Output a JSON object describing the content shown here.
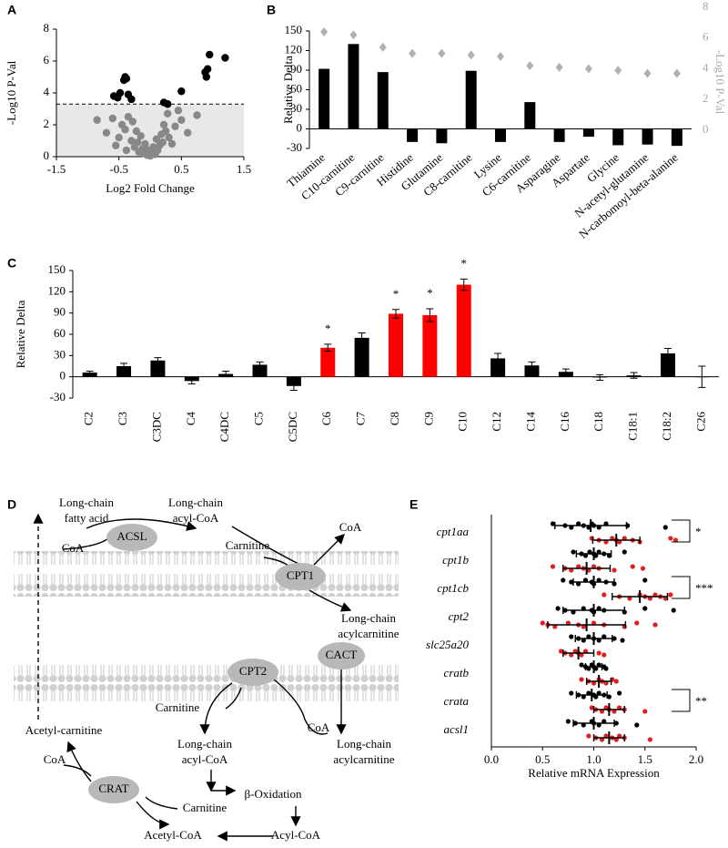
{
  "panel_labels": [
    "A",
    "B",
    "C",
    "D",
    "E"
  ],
  "chart_data": [
    {
      "type": "scatter",
      "xlabel": "Log2 Fold Change",
      "ylabel": "-Log10 P-Val",
      "xlim": [
        -1.5,
        1.5
      ],
      "xticks": [
        -1.5,
        -0.5,
        0.5,
        1.5
      ],
      "ylim": [
        0,
        8
      ],
      "yticks": [
        0,
        2,
        4,
        6,
        8
      ],
      "threshold": 3.3,
      "series": [
        {
          "color": "#000000",
          "x": [
            -0.52,
            -0.48,
            -0.42,
            -0.4,
            -0.38,
            -0.35,
            -0.3,
            -0.58,
            0.22,
            0.28,
            0.5,
            0.88,
            0.9,
            0.95,
            1.2,
            0.92
          ],
          "y": [
            3.7,
            4.0,
            4.8,
            5.0,
            4.9,
            3.9,
            3.6,
            3.8,
            3.4,
            3.3,
            4.1,
            5.3,
            5.0,
            6.4,
            6.2,
            5.5
          ]
        },
        {
          "color": "#888888",
          "x": [
            -0.85,
            -0.7,
            -0.6,
            -0.55,
            -0.5,
            -0.45,
            -0.4,
            -0.38,
            -0.35,
            -0.3,
            -0.28,
            -0.25,
            -0.22,
            -0.2,
            -0.18,
            -0.15,
            -0.12,
            -0.1,
            -0.08,
            -0.05,
            -0.03,
            0,
            0.02,
            0.05,
            0.08,
            0.1,
            0.12,
            0.15,
            0.18,
            0.2,
            0.22,
            0.25,
            0.28,
            0.3,
            0.35,
            0.4,
            0.5,
            0.6,
            0.75,
            0.45
          ],
          "y": [
            2.3,
            1.5,
            2.4,
            0.7,
            1.2,
            2.0,
            1.7,
            0.4,
            2.5,
            1.0,
            2.2,
            0.6,
            1.6,
            0.9,
            0.3,
            1.3,
            0.5,
            0.2,
            0.8,
            0.1,
            0.4,
            0.05,
            0.3,
            0.6,
            0.15,
            1.1,
            0.4,
            0.7,
            1.4,
            0.9,
            2.0,
            1.6,
            2.7,
            1.2,
            0.8,
            1.9,
            2.3,
            1.5,
            2.6,
            2.9
          ]
        }
      ]
    },
    {
      "type": "bar",
      "ylabel": "Relative Delta",
      "y2label": "-Log10 P-Val",
      "categories": [
        "Thiamine",
        "C10-carnitine",
        "C9-carnitine",
        "Histidine",
        "Glutamine",
        "C8-carnitine",
        "Lysine",
        "C6-carnitine",
        "Asparagine",
        "Aspartate",
        "Glycine",
        "N-acetyl-glutamine",
        "N-carbomoyl-beta-alanine"
      ],
      "ylim": [
        -30,
        150
      ],
      "yticks": [
        -30,
        0,
        30,
        60,
        90,
        120,
        150
      ],
      "y2lim": [
        0,
        8
      ],
      "y2ticks": [
        0,
        2,
        4,
        6,
        8
      ],
      "series": [
        {
          "type": "bar",
          "color": "#000000",
          "values": [
            92,
            130,
            87,
            -20,
            -22,
            89,
            -20,
            41,
            -20,
            -12,
            -25,
            -24,
            -26
          ]
        },
        {
          "type": "scatter",
          "axis": "y2",
          "color": "#b0b0b0",
          "values": [
            6.4,
            6.2,
            5.4,
            5.0,
            5.0,
            4.9,
            4.8,
            4.2,
            4.1,
            4.0,
            3.9,
            3.7,
            3.7
          ]
        }
      ]
    },
    {
      "type": "bar",
      "ylabel": "Relative Delta",
      "categories": [
        "C2",
        "C3",
        "C3DC",
        "C4",
        "C4DC",
        "C5",
        "C5DC",
        "C6",
        "C7",
        "C8",
        "C9",
        "C10",
        "C12",
        "C14",
        "C16",
        "C18",
        "C18:1",
        "C18:2",
        "C26"
      ],
      "values": [
        6,
        15,
        23,
        -6,
        4,
        17,
        -13,
        41,
        55,
        89,
        87,
        130,
        26,
        16,
        7,
        -1,
        2,
        33,
        0
      ],
      "errors": [
        2,
        4,
        4,
        4,
        4,
        4,
        6,
        5,
        7,
        6,
        9,
        8,
        7,
        5,
        4,
        4,
        4,
        7,
        15
      ],
      "colors": [
        "#000000",
        "#000000",
        "#000000",
        "#000000",
        "#000000",
        "#000000",
        "#000000",
        "#ff0000",
        "#000000",
        "#ff0000",
        "#ff0000",
        "#ff0000",
        "#000000",
        "#000000",
        "#000000",
        "#000000",
        "#000000",
        "#000000",
        "#000000"
      ],
      "annotations": [
        null,
        null,
        null,
        null,
        null,
        null,
        null,
        "*",
        null,
        "*",
        "*",
        "*",
        null,
        null,
        null,
        null,
        null,
        null,
        null
      ],
      "ylim": [
        -30,
        150
      ],
      "yticks": [
        -30,
        0,
        30,
        60,
        90,
        120,
        150
      ]
    },
    {
      "type": "dotplot",
      "xlabel": "Relative mRNA Expression",
      "categories": [
        "cpt1aa",
        "cpt1b",
        "cpt1cb",
        "cpt2",
        "slc25a20",
        "cratb",
        "crata",
        "acsl1"
      ],
      "xlim": [
        0,
        2
      ],
      "xticks": [
        {
          "value": 0,
          "label": "0.0"
        },
        0.5,
        {
          "value": 1,
          "label": "1.0"
        },
        1.5,
        {
          "value": 2,
          "label": "2.0"
        }
      ],
      "significance": [
        "*",
        null,
        "***",
        null,
        null,
        null,
        "**",
        null
      ],
      "series": [
        {
          "color": "#000000",
          "values": [
            [
              0.6,
              0.72,
              0.78,
              0.85,
              0.9,
              0.95,
              0.98,
              1.0,
              1.05,
              1.12,
              1.33,
              1.7
            ],
            [
              0.8,
              0.88,
              0.92,
              0.96,
              1.0,
              1.02,
              1.05,
              1.1,
              1.15,
              1.3
            ],
            [
              0.7,
              0.78,
              0.85,
              0.92,
              0.98,
              1.0,
              1.05,
              1.12,
              1.2,
              1.5
            ],
            [
              0.65,
              0.72,
              0.8,
              0.9,
              0.98,
              1.0,
              1.05,
              1.1,
              1.3,
              1.5,
              1.78
            ],
            [
              0.78,
              0.85,
              0.9,
              0.95,
              1.0,
              1.05,
              1.1,
              1.2,
              1.28
            ],
            [
              0.88,
              0.92,
              0.95,
              0.98,
              1.0,
              1.02,
              1.05,
              1.1,
              1.12
            ],
            [
              0.78,
              0.85,
              0.9,
              0.95,
              1.0,
              1.02,
              1.05,
              1.1,
              1.15,
              1.25
            ],
            [
              0.75,
              0.82,
              0.9,
              0.98,
              1.0,
              1.05,
              1.1,
              1.22,
              1.42
            ]
          ],
          "means": [
            0.97,
            1.0,
            1.0,
            1.0,
            1.0,
            1.0,
            0.98,
            1.0
          ],
          "sds": [
            0.35,
            0.17,
            0.2,
            0.3,
            0.18,
            0.08,
            0.15,
            0.2
          ]
        },
        {
          "color": "#e02020",
          "values": [
            [
              0.98,
              1.05,
              1.12,
              1.18,
              1.22,
              1.25,
              1.3,
              1.38,
              1.45,
              1.75,
              1.8
            ],
            [
              0.6,
              0.72,
              0.78,
              0.85,
              0.9,
              0.95,
              1.0,
              1.05,
              1.2,
              1.38,
              1.48
            ],
            [
              1.1,
              1.25,
              1.35,
              1.45,
              1.5,
              1.55,
              1.6,
              1.65,
              1.7,
              1.75
            ],
            [
              0.5,
              0.55,
              0.62,
              0.75,
              0.85,
              0.9,
              1.0,
              1.1,
              1.3,
              1.42,
              1.6
            ],
            [
              0.68,
              0.72,
              0.78,
              0.82,
              0.85,
              0.88,
              0.92,
              1.05,
              1.1
            ],
            [
              0.88,
              0.95,
              1.0,
              1.05,
              1.08,
              1.12,
              1.18,
              1.22
            ],
            [
              0.98,
              1.02,
              1.08,
              1.12,
              1.15,
              1.2,
              1.25,
              1.3,
              1.5
            ],
            [
              0.95,
              1.02,
              1.08,
              1.12,
              1.18,
              1.22,
              1.25,
              1.3,
              1.55
            ]
          ],
          "means": [
            1.22,
            0.93,
            1.45,
            0.93,
            0.85,
            1.05,
            1.15,
            1.15
          ],
          "sds": [
            0.23,
            0.23,
            0.27,
            0.38,
            0.15,
            0.12,
            0.15,
            0.15
          ]
        }
      ]
    }
  ],
  "diagram": {
    "nodes": [
      {
        "lines": [
          "Long-chain",
          "fatty acid"
        ]
      },
      {
        "lines": [
          "ACSL"
        ]
      },
      {
        "lines": [
          "Long-chain",
          "acyl-CoA"
        ]
      },
      {
        "lines": [
          "CoA"
        ]
      },
      {
        "lines": [
          "Carnitine"
        ]
      },
      {
        "lines": [
          "CoA"
        ]
      },
      {
        "lines": [
          "CPT1"
        ]
      },
      {
        "lines": [
          "Long-chain",
          "acylcarnitine"
        ]
      },
      {
        "lines": [
          "CACT"
        ]
      },
      {
        "lines": [
          "CPT2"
        ]
      },
      {
        "lines": [
          "Carnitine"
        ]
      },
      {
        "lines": [
          "CoA"
        ]
      },
      {
        "lines": [
          "Long-chain",
          "acylcarnitine"
        ]
      },
      {
        "lines": [
          "Long-chain",
          "acyl-CoA"
        ]
      },
      {
        "lines": [
          "Acetyl-carnitine"
        ]
      },
      {
        "lines": [
          "CoA"
        ]
      },
      {
        "lines": [
          "CRAT"
        ]
      },
      {
        "lines": [
          "Carnitine"
        ]
      },
      {
        "lines": [
          "β-Oxidation"
        ]
      },
      {
        "lines": [
          "Acetyl-CoA"
        ]
      },
      {
        "lines": [
          "Acyl-CoA"
        ]
      }
    ]
  }
}
